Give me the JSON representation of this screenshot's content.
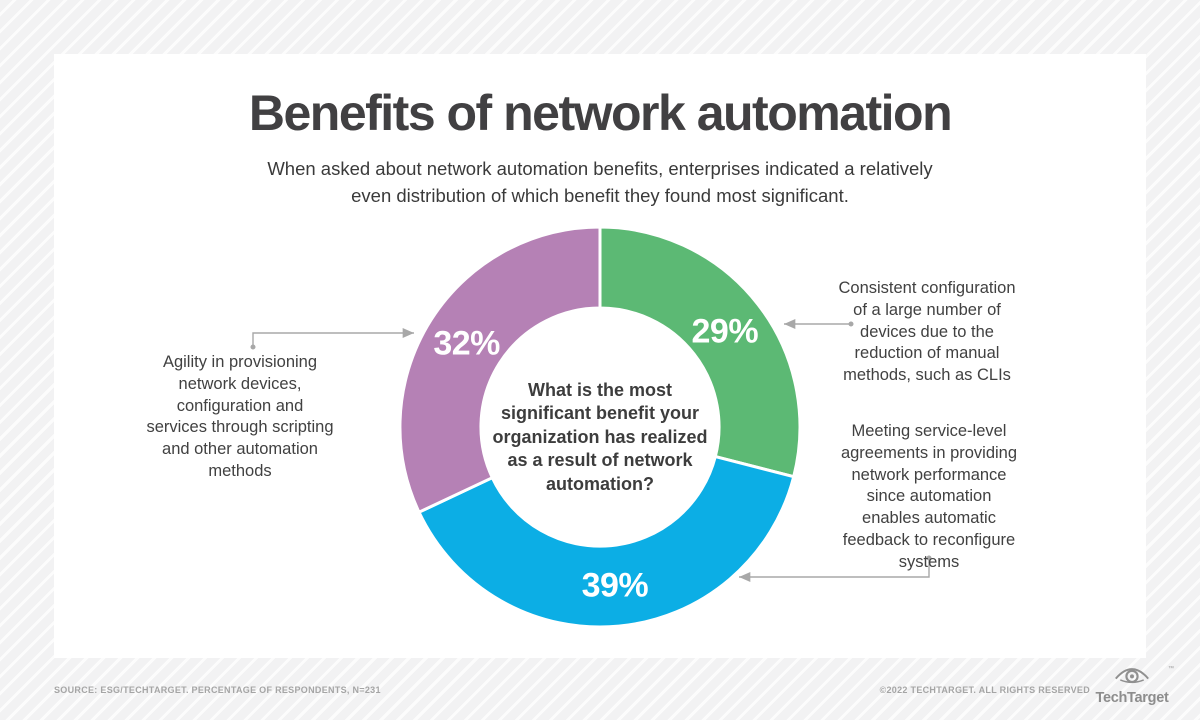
{
  "chart_data": {
    "type": "pie",
    "donut": true,
    "title": "Benefits of network automation",
    "subtitle": "When asked about network automation benefits, enterprises indicated a relatively even distribution of which benefit they found most significant.",
    "subtitle_lines": [
      "When asked about network automation benefits, enterprises indicated a relatively",
      "even distribution of which benefit they found most significant."
    ],
    "question": "What is the most significant benefit your organization has realized as a result of network automation?",
    "question_lines": [
      "What is the most",
      "significant benefit your",
      "organization has realized",
      "as a result of network",
      "automation?"
    ],
    "unit": "%",
    "start_angle_deg": 0,
    "direction": "clockwise",
    "inner_radius_ratio": 0.6,
    "legend": "none",
    "value_label_color": "#ffffff",
    "connector_color": "#a8a8a8",
    "segments": [
      {
        "value": 29,
        "color": "#5cb974",
        "label": "Consistent configuration of a large number of devices due to the reduction of manual methods, such as CLIs",
        "label_lines": [
          "Consistent configuration",
          "of a large number of",
          "devices due to the",
          "reduction of manual",
          "methods, such as CLIs"
        ]
      },
      {
        "value": 39,
        "color": "#0caee5",
        "label": "Meeting service-level agreements in providing network performance since automation enables automatic feedback to reconfigure systems",
        "label_lines": [
          "Meeting service-level",
          "agreements in providing",
          "network performance",
          "since automation",
          "enables automatic",
          "feedback to reconfigure",
          "systems"
        ]
      },
      {
        "value": 32,
        "color": "#b581b5",
        "label": "Agility in provisioning network devices, configuration and services through scripting and other automation methods",
        "label_lines": [
          "Agility in provisioning",
          "network devices,",
          "configuration and",
          "services through scripting",
          "and other automation",
          "methods"
        ]
      }
    ]
  },
  "footer": {
    "source": "SOURCE: ESG/TECHTARGET. PERCENTAGE OF RESPONDENTS, N=231",
    "copyright": "©2022 TECHTARGET. ALL RIGHTS RESERVED",
    "brand_name": "TechTarget",
    "brand_tm": "™"
  }
}
